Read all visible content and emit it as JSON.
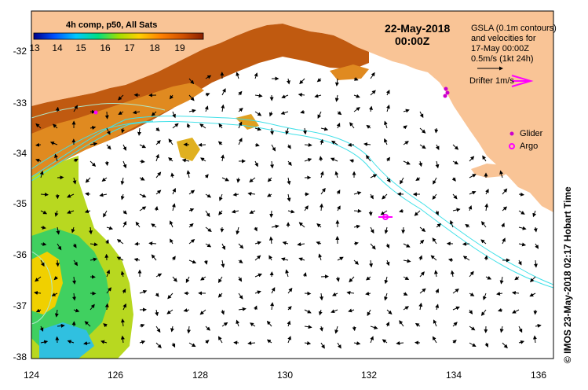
{
  "map": {
    "title_date": "22-May-2018",
    "title_time": "00:00Z",
    "colorbar": {
      "title": "4h comp, p50, All Sats",
      "ticks": [
        "13",
        "14",
        "15",
        "16",
        "17",
        "18",
        "19"
      ],
      "colors": [
        "#00008b",
        "#0050ff",
        "#00c8ff",
        "#00e080",
        "#a0e000",
        "#ffd000",
        "#ff8000",
        "#d05000",
        "#8b2000"
      ]
    },
    "legend": {
      "line1": "GSLA (0.1m contours)",
      "line2": "and velocities for",
      "line3": "17-May 00:00Z",
      "line4": "0.5m/s (1kt 24h)",
      "drifter": "Drifter 1m/s",
      "glider": "Glider",
      "argo": "Argo"
    },
    "axes": {
      "x_ticks": [
        "124",
        "126",
        "128",
        "130",
        "132",
        "134",
        "136"
      ],
      "y_ticks": [
        "-32",
        "-33",
        "-34",
        "-35",
        "-36",
        "-37",
        "-38"
      ],
      "lon_range": [
        124,
        136.6
      ],
      "lat_range": [
        -38.2,
        -31.5
      ]
    },
    "credit": "© IMOS 23-May-2018 02:17 Hobart Time",
    "colors": {
      "land": "#f9c496",
      "ocean": "#ffffff",
      "contour": "#40e0e8",
      "argo": "#ff00ff",
      "glider": "#cc00cc"
    }
  }
}
